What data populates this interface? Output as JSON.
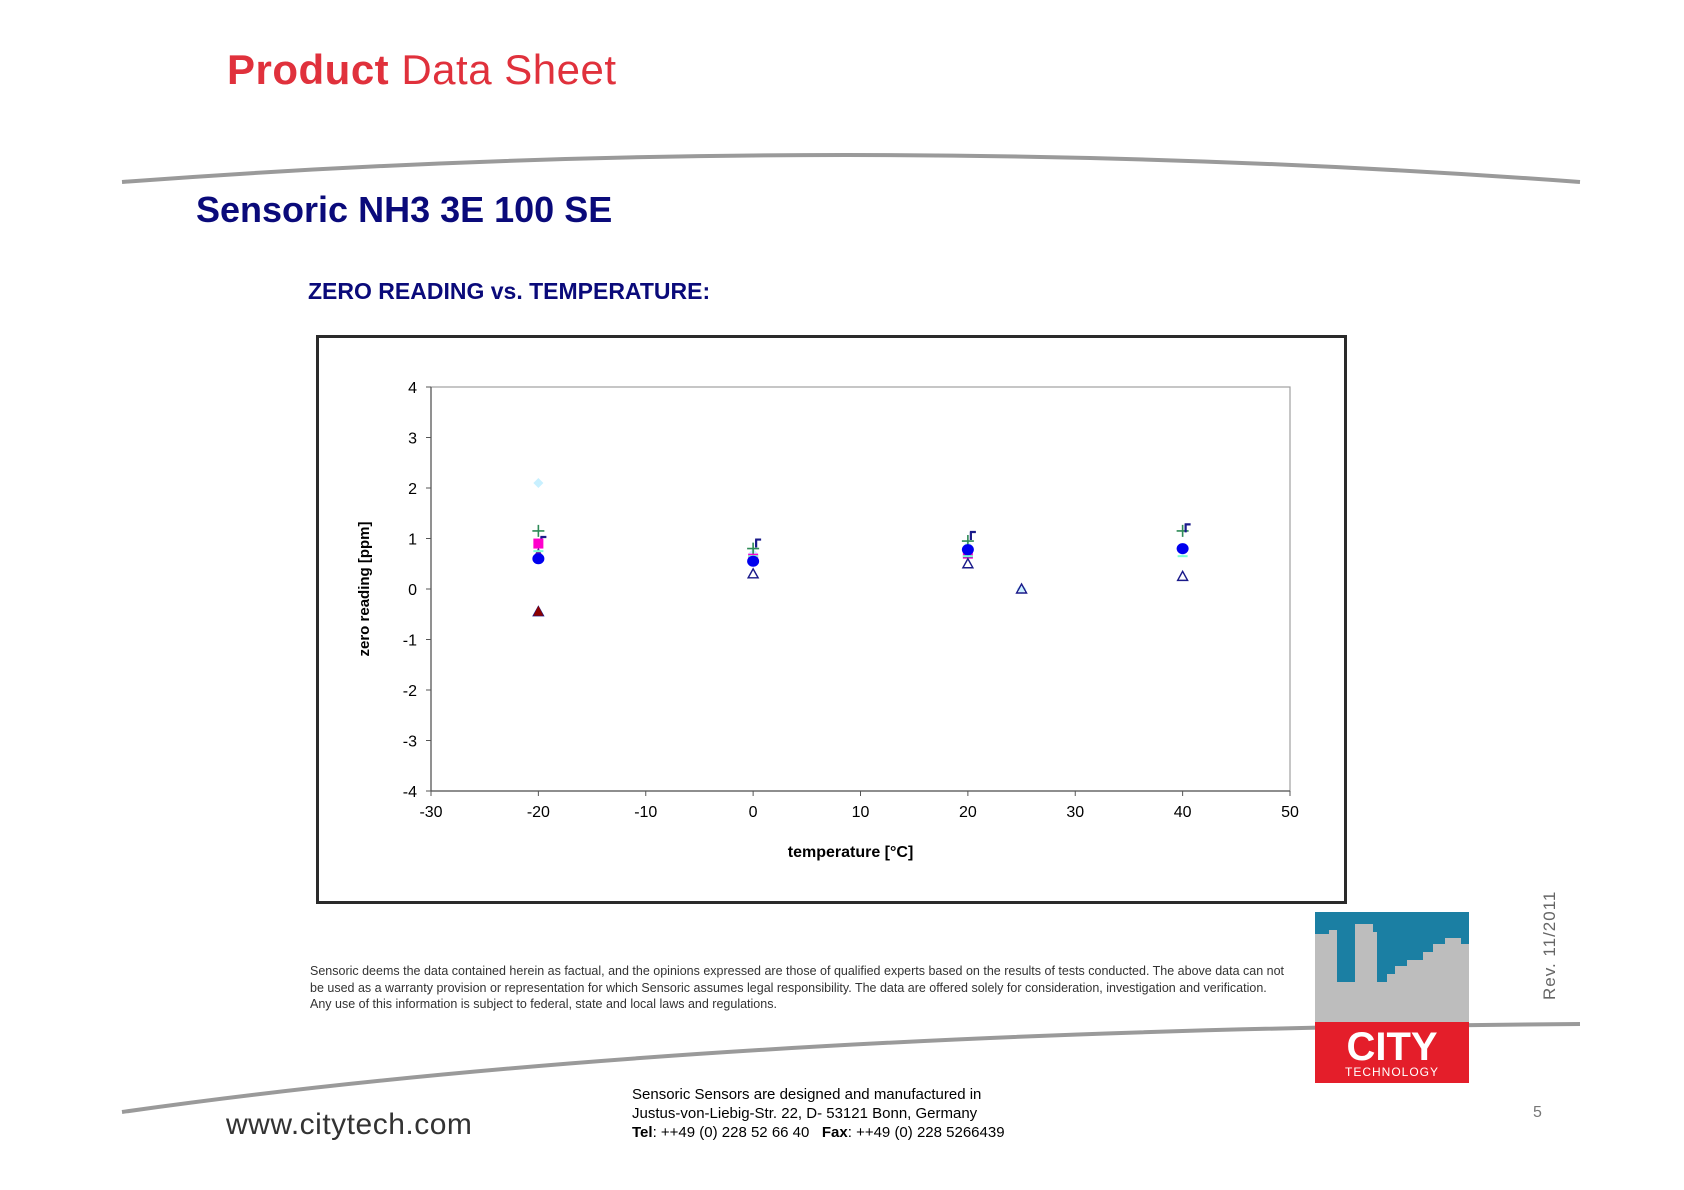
{
  "header": {
    "title_bold": "Product",
    "title_rest": "Data Sheet"
  },
  "document": {
    "title": "Sensoric NH3 3E 100 SE",
    "section_title": "ZERO READING vs. TEMPERATURE:"
  },
  "chart_data": {
    "type": "scatter",
    "title": "",
    "xlabel": "temperature [°C]",
    "ylabel": "zero reading [ppm]",
    "xlim": [
      -30,
      50
    ],
    "ylim": [
      -4,
      4
    ],
    "xticks": [
      -30,
      -20,
      -10,
      0,
      10,
      20,
      30,
      40,
      50
    ],
    "yticks": [
      4,
      3,
      2,
      1,
      0,
      -1,
      -2,
      -3,
      -4
    ],
    "grid": false,
    "legend": "none",
    "series": [
      {
        "marker": "diamond",
        "color": "#c8f0ff",
        "points": [
          [
            -20,
            2.1
          ],
          [
            0,
            0.7
          ],
          [
            20,
            0.85
          ],
          [
            25,
            0.0
          ],
          [
            40,
            0.75
          ]
        ]
      },
      {
        "marker": "plus",
        "color": "#2e8b57",
        "points": [
          [
            -20,
            1.15
          ],
          [
            0,
            0.8
          ],
          [
            20,
            0.95
          ],
          [
            40,
            1.15
          ]
        ]
      },
      {
        "marker": "bar",
        "color": "#1a1a8a",
        "points": [
          [
            -20,
            0.95
          ],
          [
            0,
            0.9
          ],
          [
            20,
            1.05
          ],
          [
            40,
            1.2
          ]
        ]
      },
      {
        "marker": "square",
        "color": "#ff00cc",
        "points": [
          [
            -20,
            0.9
          ],
          [
            0,
            0.6
          ],
          [
            20,
            0.7
          ]
        ]
      },
      {
        "marker": "triangle-filled",
        "color": "#6a1b9a",
        "points": [
          [
            -20,
            0.7
          ],
          [
            20,
            0.7
          ]
        ]
      },
      {
        "marker": "dash",
        "color": "#7fffd4",
        "points": [
          [
            -20,
            0.75
          ],
          [
            0,
            0.65
          ],
          [
            20,
            0.65
          ],
          [
            40,
            0.65
          ]
        ]
      },
      {
        "marker": "circle",
        "color": "#0000ee",
        "points": [
          [
            -20,
            0.6
          ],
          [
            0,
            0.55
          ],
          [
            20,
            0.78
          ],
          [
            40,
            0.8
          ]
        ]
      },
      {
        "marker": "triangle-open",
        "color": "#1a1a8a",
        "points": [
          [
            -20,
            -0.45
          ],
          [
            0,
            0.3
          ],
          [
            20,
            0.5
          ],
          [
            25,
            0.0
          ],
          [
            40,
            0.25
          ]
        ]
      },
      {
        "marker": "triangle-filled",
        "color": "#8b0000",
        "points": [
          [
            -20,
            -0.45
          ]
        ]
      }
    ]
  },
  "disclaimer": "Sensoric deems the data contained herein as factual, and the opinions expressed are those of qualified experts based on the results of tests conducted. The above data can not be used as a warranty provision or representation for which Sensoric assumes legal responsibility. The data are offered solely for consideration, investigation and verification. Any use of this information is subject to federal, state and local laws and regulations.",
  "revision": "Rev.  11/2011",
  "footer": {
    "line1": "Sensoric Sensors are designed and manufactured in",
    "line2": "Justus-von-Liebig-Str. 22, D- 53121 Bonn, Germany",
    "tel_label": "Tel",
    "tel_value": ": ++49 (0) 228 52 66 40",
    "fax_label": "Fax",
    "fax_value": ": ++49 (0) 228 5266439",
    "website": "www.citytech.com",
    "page_number": "5"
  },
  "logo": {
    "main": "CITY",
    "sub": "TECHNOLOGY",
    "colors": {
      "sky": "#1b7fa3",
      "buildings": "#bdbdbd",
      "band": "#e41e2a"
    }
  },
  "colors": {
    "brand_red": "#e0313c",
    "title_navy": "#0a0a7a",
    "divider_gray": "#9a9a9a"
  }
}
